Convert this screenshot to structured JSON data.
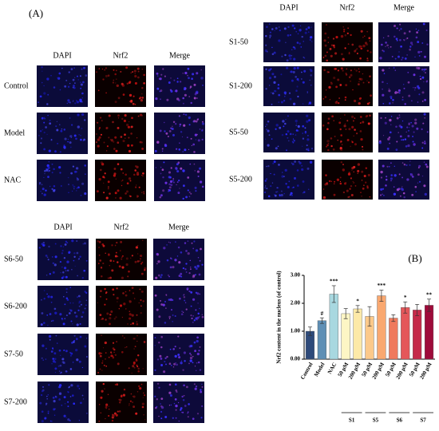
{
  "panel_a": {
    "label": "(A)",
    "groups": [
      {
        "columns": [
          "DAPI",
          "Nrf2",
          "Merge"
        ],
        "rows": [
          "Control",
          "Model",
          "NAC"
        ]
      },
      {
        "columns": [
          "DAPI",
          "Nrf2",
          "Merge"
        ],
        "rows": [
          "S1-50",
          "S1-200",
          "S5-50",
          "S5-200"
        ]
      },
      {
        "columns": [
          "DAPI",
          "Nrf2",
          "Merge"
        ],
        "rows": [
          "S6-50",
          "S6-200",
          "S7-50",
          "S7-200"
        ]
      }
    ]
  },
  "chart_data": {
    "type": "bar",
    "panel_label": "(B)",
    "y_label": "Nrf2 content in the nucleus (of control)",
    "categories": [
      "Control",
      "Model",
      "NAC",
      "50 μM",
      "200 μM",
      "50 μM",
      "200 μM",
      "50 μM",
      "200 μM",
      "50 μM",
      "200 μM"
    ],
    "group_labels": [
      "S1",
      "S5",
      "S6",
      "S7"
    ],
    "values": [
      1.0,
      1.38,
      2.33,
      1.63,
      1.8,
      1.53,
      2.27,
      1.47,
      1.85,
      1.76,
      1.93
    ],
    "errors": [
      0.15,
      0.1,
      0.3,
      0.18,
      0.12,
      0.35,
      0.2,
      0.12,
      0.2,
      0.2,
      0.22
    ],
    "annotations": [
      null,
      "#",
      "***",
      null,
      "*",
      null,
      "***",
      null,
      "*",
      null,
      "**"
    ],
    "colors": [
      "#2e4a7a",
      "#5f8fb5",
      "#a8d8e0",
      "#fdf6c5",
      "#fde9a8",
      "#fcc98a",
      "#f9a870",
      "#ef7a5d",
      "#e4575a",
      "#c52a4a",
      "#9e0a3a"
    ],
    "ylim": [
      0,
      3
    ],
    "yticks": [
      {
        "value": 0,
        "label": "0.00"
      },
      {
        "value": 1,
        "label": "1.00"
      },
      {
        "value": 2,
        "label": "2.00"
      },
      {
        "value": 3,
        "label": "3.00"
      }
    ]
  }
}
